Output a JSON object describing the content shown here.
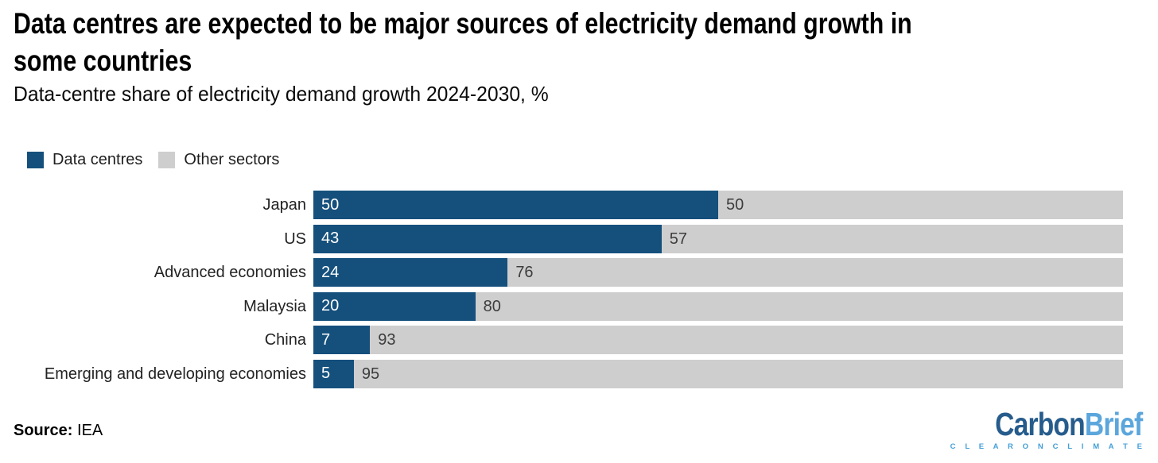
{
  "header": {
    "title_line1": "Data centres are expected to be major sources of electricity demand growth in",
    "title_line2": "some countries",
    "subtitle": "Data-centre share of electricity demand growth 2024-2030, %"
  },
  "legend": {
    "items": [
      {
        "label": "Data centres",
        "color": "#15507d"
      },
      {
        "label": "Other sectors",
        "color": "#cecece"
      }
    ]
  },
  "chart_data": {
    "type": "bar",
    "orientation": "horizontal",
    "stacked": true,
    "unit": "%",
    "xlim": [
      0,
      100
    ],
    "grid": false,
    "legend_position": "top-left",
    "title": "Data centres are expected to be major sources of electricity demand growth in some countries",
    "subtitle": "Data-centre share of electricity demand growth 2024-2030, %",
    "categories": [
      "Japan",
      "US",
      "Advanced economies",
      "Malaysia",
      "China",
      "Emerging and developing economies"
    ],
    "series": [
      {
        "name": "Data centres",
        "color": "#15507d",
        "text_color": "#ffffff",
        "values": [
          50,
          43,
          24,
          20,
          7,
          5
        ]
      },
      {
        "name": "Other sectors",
        "color": "#cecece",
        "text_color": "#3d3d3d",
        "values": [
          50,
          57,
          76,
          80,
          93,
          95
        ]
      }
    ],
    "value_labels": true
  },
  "footer": {
    "source_label": "Source:",
    "source_value": " IEA",
    "logo": {
      "part1": "Carbon",
      "part2": "Brief",
      "tagline": "C L E A R   O N   C L I M A T E",
      "part1_color": "#265c8c",
      "part2_color": "#5ba6dc",
      "tagline_color": "#449fd8"
    }
  }
}
